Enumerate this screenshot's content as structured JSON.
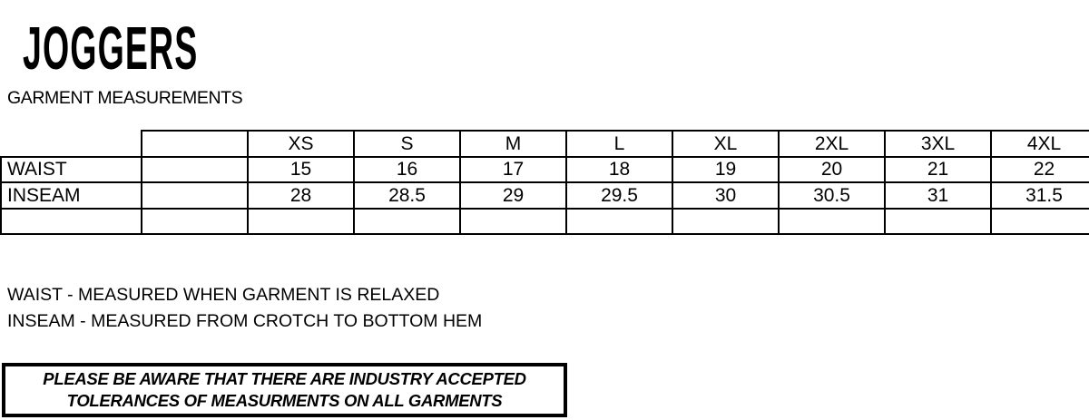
{
  "page": {
    "title": "JOGGERS",
    "subtitle": "GARMENT MEASUREMENTS"
  },
  "size_chart": {
    "columns": [
      "",
      "",
      "XS",
      "S",
      "M",
      "L",
      "XL",
      "2XL",
      "3XL",
      "4XL"
    ],
    "rows": [
      {
        "label": "WAIST",
        "values": [
          "",
          "15",
          "16",
          "17",
          "18",
          "19",
          "20",
          "21",
          "22"
        ]
      },
      {
        "label": "INSEAM",
        "values": [
          "",
          "28",
          "28.5",
          "29",
          "29.5",
          "30",
          "30.5",
          "31",
          "31.5"
        ]
      },
      {
        "label": "",
        "values": [
          "",
          "",
          "",
          "",
          "",
          "",
          "",
          "",
          ""
        ]
      }
    ]
  },
  "notes": [
    "WAIST - MEASURED WHEN GARMENT IS RELAXED",
    "INSEAM - MEASURED FROM CROTCH TO BOTTOM HEM"
  ],
  "disclaimer": {
    "line1": "PLEASE BE AWARE THAT THERE ARE INDUSTRY ACCEPTED",
    "line2": "TOLERANCES OF MEASURMENTS ON ALL GARMENTS"
  },
  "colors": {
    "text": "#000000",
    "background": "#ffffff",
    "border": "#000000"
  }
}
